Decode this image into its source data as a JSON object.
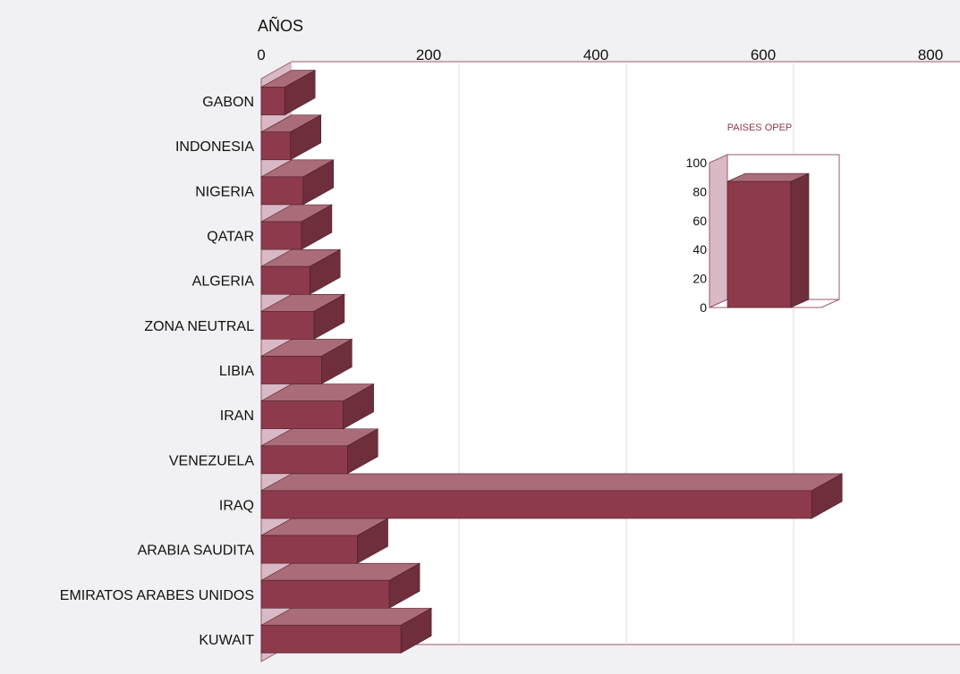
{
  "chart_data": [
    {
      "type": "bar",
      "orientation": "horizontal",
      "title": "",
      "xlabel": "AÑOS",
      "ylabel": "",
      "xlim": [
        0,
        800
      ],
      "x_ticks": [
        "0",
        "200",
        "400",
        "600",
        "800"
      ],
      "grid": true,
      "categories": [
        "GABON",
        "INDONESIA",
        "NIGERIA",
        "QATAR",
        "ALGERIA",
        "ZONA NEUTRAL",
        "LIBIA",
        "IRAN",
        "VENEZUELA",
        "IRAQ",
        "ARABIA SAUDITA",
        "EMIRATOS ARABES UNIDOS",
        "KUWAIT"
      ],
      "values": [
        28,
        35,
        50,
        48,
        58,
        63,
        72,
        98,
        103,
        658,
        115,
        153,
        167
      ],
      "bar_color": "#8d3b4c"
    },
    {
      "type": "bar",
      "title": "PAISES OPEP",
      "ylim": [
        0,
        100
      ],
      "y_ticks": [
        "0",
        "20",
        "40",
        "60",
        "80",
        "100"
      ],
      "categories": [
        ""
      ],
      "values": [
        87
      ],
      "bar_color": "#8d3b4c"
    }
  ]
}
